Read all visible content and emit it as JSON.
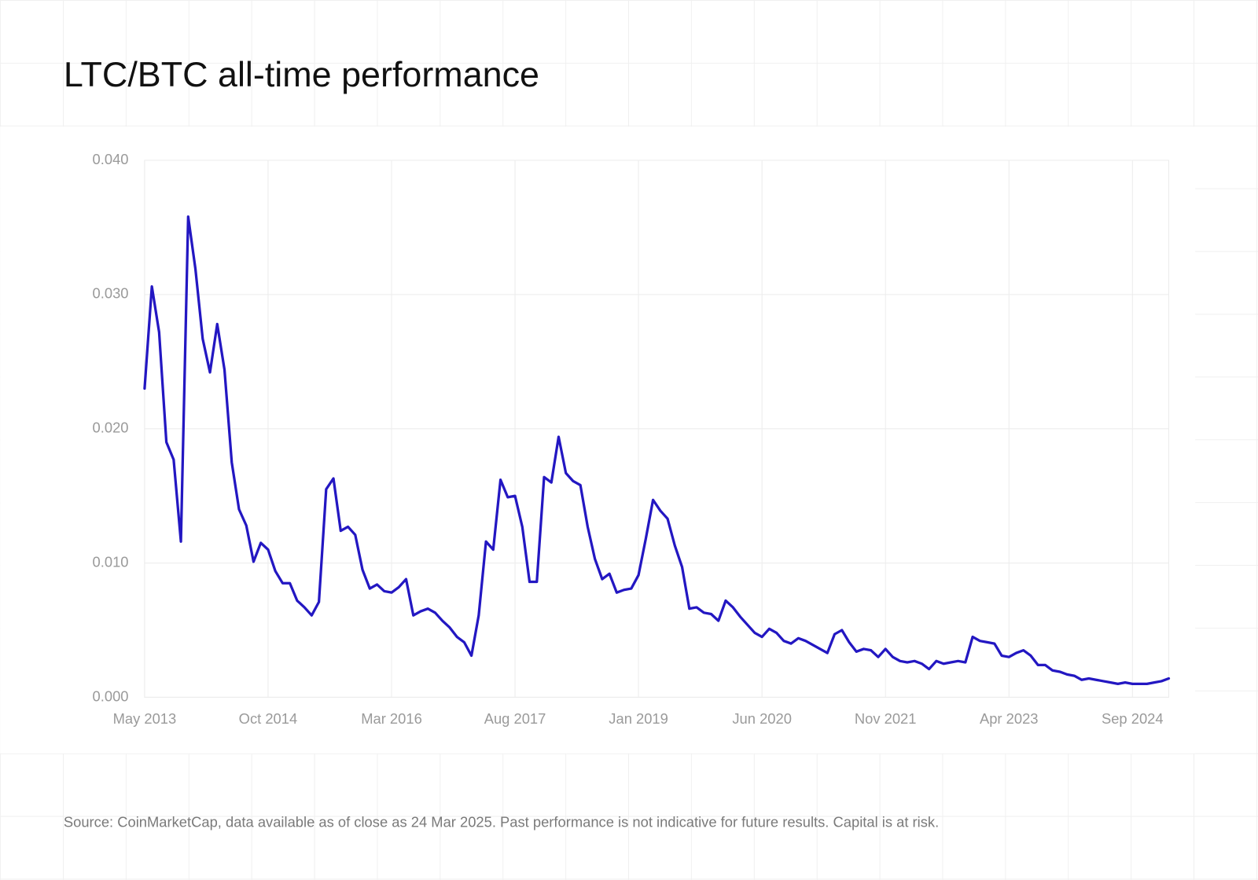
{
  "chart_data": {
    "type": "line",
    "title": "LTC/BTC all-time performance",
    "source": "Source: CoinMarketCap, data available as of close as 24 Mar 2025. Past performance is not indicative for future results. Capital is at risk.",
    "categories": [
      "May 2013",
      null,
      null,
      null,
      null,
      null,
      null,
      null,
      null,
      null,
      null,
      null,
      null,
      null,
      null,
      null,
      null,
      "Oct 2014",
      null,
      null,
      null,
      null,
      null,
      null,
      null,
      null,
      null,
      null,
      null,
      null,
      null,
      null,
      null,
      null,
      "Mar 2016",
      null,
      null,
      null,
      null,
      null,
      null,
      null,
      null,
      null,
      null,
      null,
      null,
      null,
      null,
      null,
      null,
      "Aug 2017",
      null,
      null,
      null,
      null,
      null,
      null,
      null,
      null,
      null,
      null,
      null,
      null,
      null,
      null,
      null,
      null,
      "Jan 2019",
      null,
      null,
      null,
      null,
      null,
      null,
      null,
      null,
      null,
      null,
      null,
      null,
      null,
      null,
      null,
      null,
      "Jun 2020",
      null,
      null,
      null,
      null,
      null,
      null,
      null,
      null,
      null,
      null,
      null,
      null,
      null,
      null,
      null,
      null,
      "Nov 2021",
      null,
      null,
      null,
      null,
      null,
      null,
      null,
      null,
      null,
      null,
      null,
      null,
      null,
      null,
      null,
      null,
      "Apr 2023",
      null,
      null,
      null,
      null,
      null,
      null,
      null,
      null,
      null,
      null,
      null,
      null,
      null,
      null,
      null,
      null,
      "Sep 2024",
      null,
      null,
      null,
      null,
      null
    ],
    "series": [
      {
        "name": "LTC/BTC",
        "color": "#2317c2",
        "values": [
          0.023,
          0.0306,
          0.0272,
          0.019,
          0.0177,
          0.0116,
          0.0358,
          0.0319,
          0.0267,
          0.0242,
          0.0278,
          0.0244,
          0.0175,
          0.014,
          0.0128,
          0.0101,
          0.0115,
          0.011,
          0.0094,
          0.0085,
          0.0085,
          0.0072,
          0.0067,
          0.0061,
          0.0071,
          0.0155,
          0.0163,
          0.0124,
          0.0127,
          0.0121,
          0.0095,
          0.0081,
          0.0084,
          0.0079,
          0.0078,
          0.0082,
          0.0088,
          0.0061,
          0.0064,
          0.0066,
          0.0063,
          0.0057,
          0.0052,
          0.0045,
          0.0041,
          0.0031,
          0.0061,
          0.0116,
          0.011,
          0.0162,
          0.0149,
          0.015,
          0.0127,
          0.0086,
          0.0086,
          0.0164,
          0.016,
          0.0194,
          0.0167,
          0.0161,
          0.0158,
          0.0127,
          0.0103,
          0.0088,
          0.0092,
          0.0078,
          0.008,
          0.0081,
          0.0091,
          0.0118,
          0.0147,
          0.0139,
          0.0133,
          0.0113,
          0.0097,
          0.0066,
          0.0067,
          0.0063,
          0.0062,
          0.0057,
          0.0072,
          0.0067,
          0.006,
          0.0054,
          0.0048,
          0.0045,
          0.0051,
          0.0048,
          0.0042,
          0.004,
          0.0044,
          0.0042,
          0.0039,
          0.0036,
          0.0033,
          0.0047,
          0.005,
          0.0041,
          0.0034,
          0.0036,
          0.0035,
          0.003,
          0.0036,
          0.003,
          0.0027,
          0.0026,
          0.0027,
          0.0025,
          0.0021,
          0.0027,
          0.0025,
          0.0026,
          0.0027,
          0.0026,
          0.0045,
          0.0042,
          0.0041,
          0.004,
          0.0031,
          0.003,
          0.0033,
          0.0035,
          0.0031,
          0.0024,
          0.0024,
          0.002,
          0.0019,
          0.0017,
          0.0016,
          0.0013,
          0.0014,
          0.0013,
          0.0012,
          0.0011,
          0.001,
          0.0011,
          0.001,
          0.001,
          0.001,
          0.0011,
          0.0012,
          0.0014
        ]
      }
    ],
    "ylim": [
      0,
      0.04
    ],
    "yticks": [
      {
        "value": 0,
        "label": "0.000"
      },
      {
        "value": 0.01,
        "label": "0.010"
      },
      {
        "value": 0.02,
        "label": "0.020"
      },
      {
        "value": 0.03,
        "label": "0.030"
      },
      {
        "value": 0.04,
        "label": "0.040"
      }
    ],
    "grid": true
  }
}
